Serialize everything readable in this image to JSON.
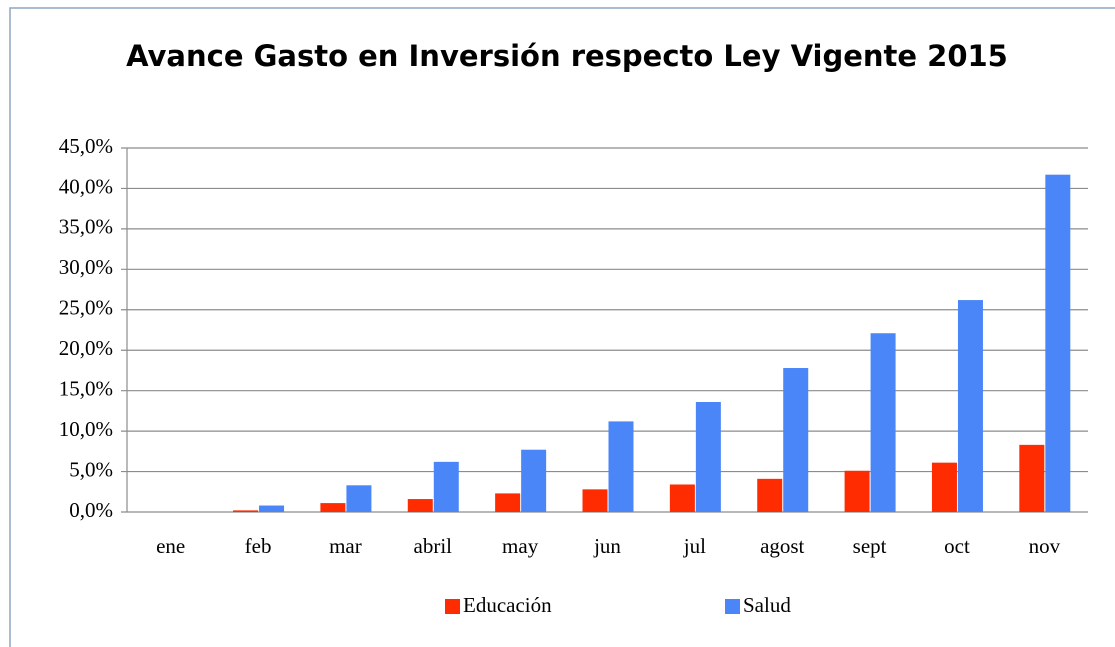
{
  "chart_data": {
    "type": "bar",
    "title": "Avance Gasto en Inversión respecto Ley Vigente 2015",
    "categories": [
      "ene",
      "feb",
      "mar",
      "abril",
      "may",
      "jun",
      "jul",
      "agost",
      "sept",
      "oct",
      "nov"
    ],
    "series": [
      {
        "name": "Educación",
        "color": "#fe2c00",
        "values": [
          0,
          0.2,
          1.1,
          1.6,
          2.3,
          2.8,
          3.4,
          4.1,
          5.1,
          6.1,
          8.3
        ]
      },
      {
        "name": "Salud",
        "color": "#4a86f7",
        "values": [
          0,
          0.8,
          3.3,
          6.2,
          7.7,
          11.2,
          13.6,
          17.8,
          22.1,
          26.2,
          41.7
        ]
      }
    ],
    "ylim": [
      0,
      45
    ],
    "yticks": [
      {
        "value": 0,
        "label": "0,0%"
      },
      {
        "value": 5,
        "label": "5,0%"
      },
      {
        "value": 10,
        "label": "10,0%"
      },
      {
        "value": 15,
        "label": "15,0%"
      },
      {
        "value": 20,
        "label": "20,0%"
      },
      {
        "value": 25,
        "label": "25,0%"
      },
      {
        "value": 30,
        "label": "30,0%"
      },
      {
        "value": 35,
        "label": "35,0%"
      },
      {
        "value": 40,
        "label": "40,0%"
      },
      {
        "value": 45,
        "label": "45,0%"
      }
    ],
    "grid": true,
    "legend": "bottom"
  }
}
